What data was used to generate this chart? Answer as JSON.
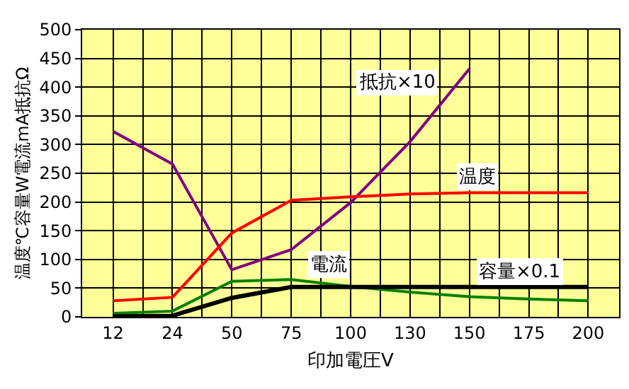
{
  "chart_data": {
    "type": "line",
    "xlabel": "印加電圧V",
    "ylabel": "温度℃容量W電流mA抵抗Ω",
    "categories": [
      "12",
      "24",
      "50",
      "75",
      "100",
      "130",
      "150",
      "175",
      "200"
    ],
    "series": [
      {
        "name": "抵抗×10",
        "color": "#800080",
        "values": [
          323,
          266,
          82,
          117,
          199,
          305,
          432,
          null,
          null
        ]
      },
      {
        "name": "温度",
        "color": "#ff0000",
        "values": [
          28,
          34,
          146,
          203,
          209,
          214,
          216,
          216,
          216
        ]
      },
      {
        "name": "電流",
        "color": "#008000",
        "values": [
          6,
          10,
          62,
          65,
          53,
          43,
          35,
          31,
          28
        ]
      },
      {
        "name": "容量×0.1",
        "color": "#000000",
        "values": [
          1,
          2,
          33,
          52,
          52,
          52,
          52,
          52,
          52
        ]
      }
    ],
    "ylim": [
      0,
      500
    ],
    "yticks": [
      0,
      50,
      100,
      150,
      200,
      250,
      300,
      350,
      400,
      450,
      500
    ],
    "grid": true,
    "legend": false,
    "marker": "none",
    "line_style": "solid"
  }
}
